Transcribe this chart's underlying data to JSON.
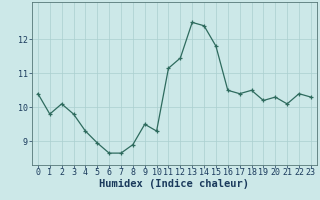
{
  "x": [
    0,
    1,
    2,
    3,
    4,
    5,
    6,
    7,
    8,
    9,
    10,
    11,
    12,
    13,
    14,
    15,
    16,
    17,
    18,
    19,
    20,
    21,
    22,
    23
  ],
  "y": [
    10.4,
    9.8,
    10.1,
    9.8,
    9.3,
    8.95,
    8.65,
    8.65,
    8.9,
    9.5,
    9.3,
    11.15,
    11.45,
    12.5,
    12.4,
    11.8,
    10.5,
    10.4,
    10.5,
    10.2,
    10.3,
    10.1,
    10.4,
    10.3
  ],
  "xlabel": "Humidex (Indice chaleur)",
  "ylabel": "",
  "xlim": [
    -0.5,
    23.5
  ],
  "ylim": [
    8.3,
    13.1
  ],
  "yticks": [
    9,
    10,
    11,
    12
  ],
  "xticks": [
    0,
    1,
    2,
    3,
    4,
    5,
    6,
    7,
    8,
    9,
    10,
    11,
    12,
    13,
    14,
    15,
    16,
    17,
    18,
    19,
    20,
    21,
    22,
    23
  ],
  "line_color": "#2e6b5e",
  "marker_color": "#2e6b5e",
  "bg_color": "#cce8e8",
  "grid_color": "#aacfcf",
  "axis_label_color": "#1a3a5c",
  "tick_color": "#1a3a5c",
  "axis_fontsize": 7.5,
  "tick_fontsize": 6.0,
  "ylabel_fontsize": 6.5
}
